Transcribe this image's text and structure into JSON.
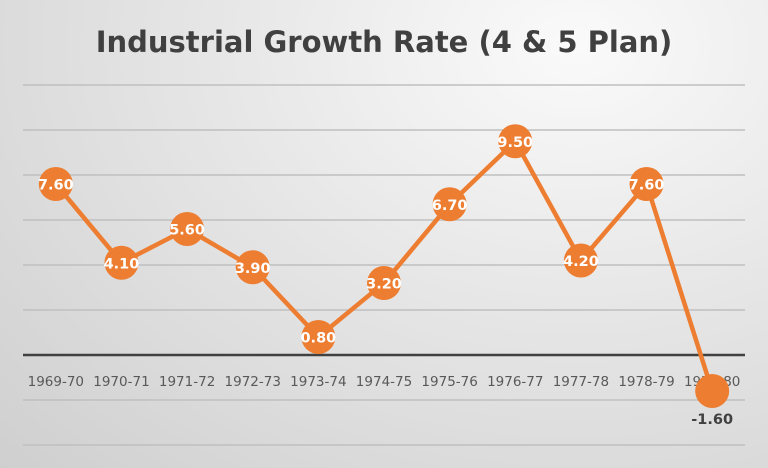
{
  "chart_data": {
    "type": "line",
    "title": "Industrial Growth Rate (4 & 5 Plan)",
    "categories": [
      "1969-70",
      "1970-71",
      "1971-72",
      "1972-73",
      "1973-74",
      "1974-75",
      "1975-76",
      "1976-77",
      "1977-78",
      "1978-79",
      "1979-80"
    ],
    "series": [
      {
        "values": [
          7.6,
          4.1,
          5.6,
          3.9,
          0.8,
          3.2,
          6.7,
          9.5,
          4.2,
          7.6,
          -1.6
        ],
        "data_labels": [
          "7.60",
          "4.10",
          "5.60",
          "3.90",
          "0.80",
          "3.20",
          "6.70",
          "9.50",
          "4.20",
          "7.60",
          "-1.60"
        ]
      }
    ],
    "xlabel": "",
    "ylabel": "",
    "ylim": [
      -4,
      12
    ],
    "grid_step": 2,
    "grid": true,
    "legend": "none",
    "y_tick_labels_shown": false,
    "colors": {
      "series": "#ED7D31",
      "axis": "#404040",
      "grid": "#BFBFBF",
      "title": "#404040",
      "tick_label": "#595959",
      "data_label": "#FFFFFF"
    }
  }
}
